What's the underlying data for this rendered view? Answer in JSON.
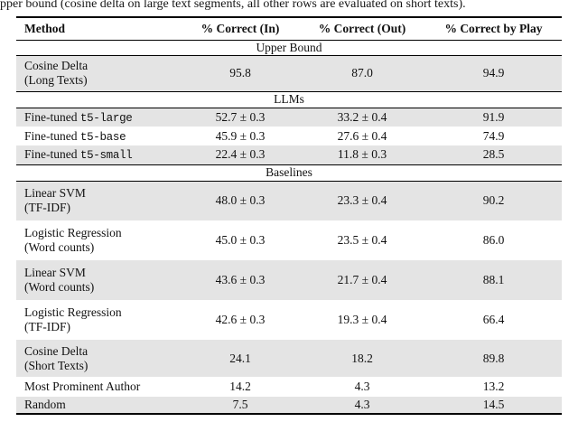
{
  "caption": "pper bound (cosine delta on large text segments, all other rows are evaluated on short texts).",
  "table": {
    "columns": [
      "Method",
      "% Correct (In)",
      "% Correct (Out)",
      "% Correct by Play"
    ],
    "sections": [
      {
        "title": "Upper Bound",
        "rows": [
          {
            "method": "Cosine Delta",
            "method2": "(Long Texts)",
            "in": "95.8",
            "out": "87.0",
            "by_play": "94.9"
          }
        ]
      },
      {
        "title": "LLMs",
        "rows": [
          {
            "method": "Fine-tuned ",
            "method_mono": "t5-large",
            "in": "52.7 ± 0.3",
            "out": "33.2 ± 0.4",
            "by_play": "91.9"
          },
          {
            "method": "Fine-tuned ",
            "method_mono": "t5-base",
            "in": "45.9 ± 0.3",
            "out": "27.6 ± 0.4",
            "by_play": "74.9"
          },
          {
            "method": "Fine-tuned ",
            "method_mono": "t5-small",
            "in": "22.4 ± 0.3",
            "out": "11.8 ± 0.3",
            "by_play": "28.5"
          }
        ]
      },
      {
        "title": "Baselines",
        "rows": [
          {
            "method": "Linear SVM",
            "method2": "(TF-IDF)",
            "in": "48.0 ± 0.3",
            "out": "23.3 ± 0.4",
            "by_play": "90.2"
          },
          {
            "method": "Logistic Regression",
            "method2": "(Word counts)",
            "in": "45.0 ± 0.3",
            "out": "23.5 ± 0.4",
            "by_play": "86.0"
          },
          {
            "method": "Linear SVM",
            "method2": "(Word counts)",
            "in": "43.6 ± 0.3",
            "out": "21.7 ± 0.4",
            "by_play": "88.1"
          },
          {
            "method": "Logistic Regression",
            "method2": "(TF-IDF)",
            "in": "42.6 ± 0.3",
            "out": "19.3 ± 0.4",
            "by_play": "66.4"
          },
          {
            "method": "Cosine Delta",
            "method2": "(Short Texts)",
            "in": "24.1",
            "out": "18.2",
            "by_play": "89.8"
          },
          {
            "method": "Most Prominent Author",
            "in": "14.2",
            "out": "4.3",
            "by_play": "13.2"
          },
          {
            "method": "Random",
            "in": "7.5",
            "out": "4.3",
            "by_play": "14.5"
          }
        ]
      }
    ]
  },
  "colors": {
    "row_shade": "#e4e4e4",
    "rule": "#000000",
    "text": "#111111"
  }
}
